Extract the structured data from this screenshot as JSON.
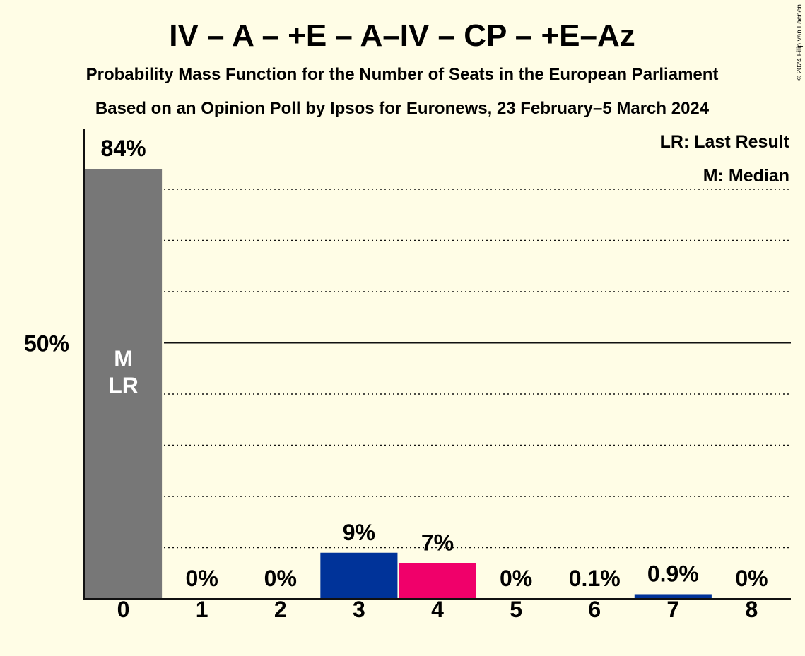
{
  "title": "IV – A – +E – A–IV – CP – +E–Az",
  "subtitle1": "Probability Mass Function for the Number of Seats in the European Parliament",
  "subtitle2": "Based on an Opinion Poll by Ipsos for Euronews, 23 February–5 March 2024",
  "copyright": "© 2024 Filip van Laenen",
  "legend": {
    "last_result": "LR: Last Result",
    "median": "M: Median"
  },
  "chart_data": {
    "type": "bar",
    "categories": [
      "0",
      "1",
      "2",
      "3",
      "4",
      "5",
      "6",
      "7",
      "8"
    ],
    "values": [
      84,
      0,
      0,
      9,
      7,
      0,
      0.1,
      0.9,
      0
    ],
    "labels": [
      "84%",
      "0%",
      "0%",
      "9%",
      "7%",
      "0%",
      "0.1%",
      "0.9%",
      "0%"
    ],
    "colors": [
      "#777777",
      "#777777",
      "#777777",
      "#003399",
      "#F0006A",
      "#777777",
      "#777777",
      "#003399",
      "#777777"
    ],
    "ylim": [
      0,
      90
    ],
    "yticks": [
      {
        "value": 50,
        "label": "50%"
      }
    ],
    "gridlines": [
      10,
      20,
      30,
      40,
      60,
      70,
      80
    ],
    "median_index": 0,
    "last_result_index": 0,
    "bar_annotation": [
      "M",
      "LR"
    ],
    "grid": true,
    "legend_position": "top-right"
  }
}
